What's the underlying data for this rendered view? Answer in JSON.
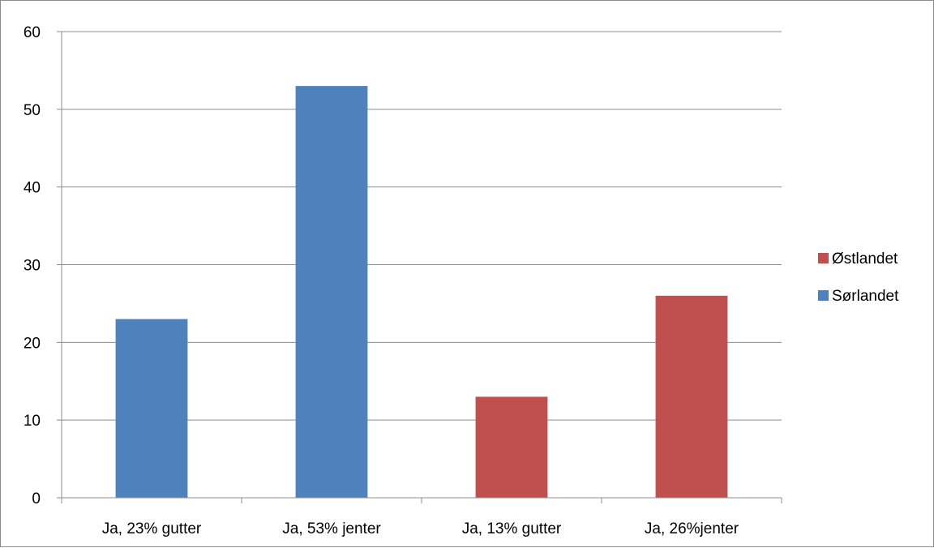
{
  "chart_data": {
    "type": "bar",
    "title": "",
    "xlabel": "",
    "ylabel": "",
    "categories": [
      "Ja, 23% gutter",
      "Ja, 53% jenter",
      "Ja, 13% gutter",
      "Ja, 26%jenter"
    ],
    "series": [
      {
        "name": "Østlandet",
        "color": "#c0504d",
        "values": [
          null,
          null,
          13,
          26
        ]
      },
      {
        "name": "Sørlandet",
        "color": "#4f81bd",
        "values": [
          23,
          53,
          null,
          null
        ]
      }
    ],
    "ylim": [
      0,
      60
    ],
    "yticks": [
      0,
      10,
      20,
      30,
      40,
      50,
      60
    ],
    "grid": true,
    "legend_position": "right"
  }
}
